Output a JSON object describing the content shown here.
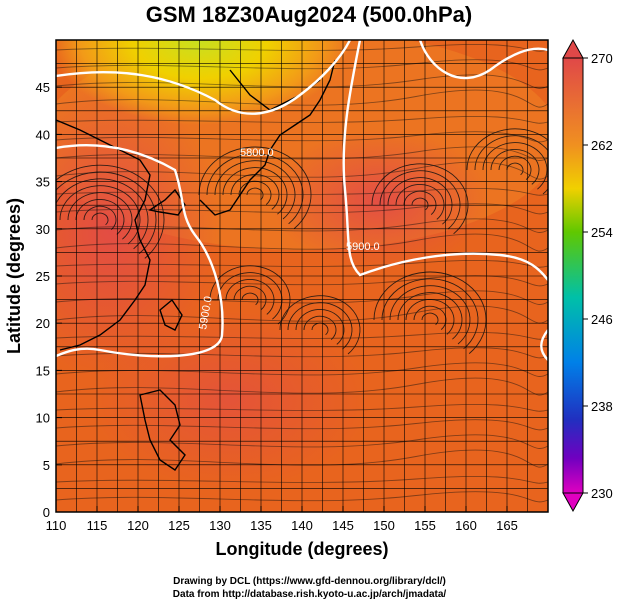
{
  "title": "GSM 18Z30Aug2024 (500.0hPa)",
  "xlabel": "Longitude (degrees)",
  "ylabel": "Latitude  (degrees)",
  "x_ticks": [
    "110",
    "115",
    "120",
    "125",
    "130",
    "135",
    "140",
    "145",
    "150",
    "155",
    "160",
    "165"
  ],
  "y_ticks": [
    "0",
    "5",
    "10",
    "15",
    "20",
    "25",
    "30",
    "35",
    "40",
    "45"
  ],
  "colorbar": {
    "ticks": [
      "270",
      "262",
      "254",
      "246",
      "238",
      "230"
    ],
    "colors": [
      "#e04040",
      "#f08020",
      "#f0c000",
      "#50c000",
      "#00c0a0",
      "#0090e0",
      "#2040c0",
      "#6000c0",
      "#e000c0"
    ]
  },
  "contour_labels": [
    "5800.0",
    "5900.0",
    "5900.0"
  ],
  "credits": {
    "line1": "Drawing by DCL (https://www.gfd-dennou.org/library/dcl/)",
    "line2": "Data from http://database.rish.kyoto-u.ac.jp/arch/jmadata/"
  },
  "chart_data": {
    "type": "heatmap",
    "title": "GSM 18Z30Aug2024 (500.0hPa)",
    "xlabel": "Longitude (degrees)",
    "ylabel": "Latitude  (degrees)",
    "xlim": [
      110,
      170
    ],
    "ylim": [
      0,
      50
    ],
    "grid": true,
    "colorbar_range": [
      230,
      270
    ],
    "colorbar_ticks": [
      230,
      238,
      246,
      254,
      262,
      270
    ],
    "contour_levels": [
      5800,
      5900
    ],
    "overlays": [
      "streamlines",
      "coastlines",
      "geopotential-height-contours"
    ]
  }
}
